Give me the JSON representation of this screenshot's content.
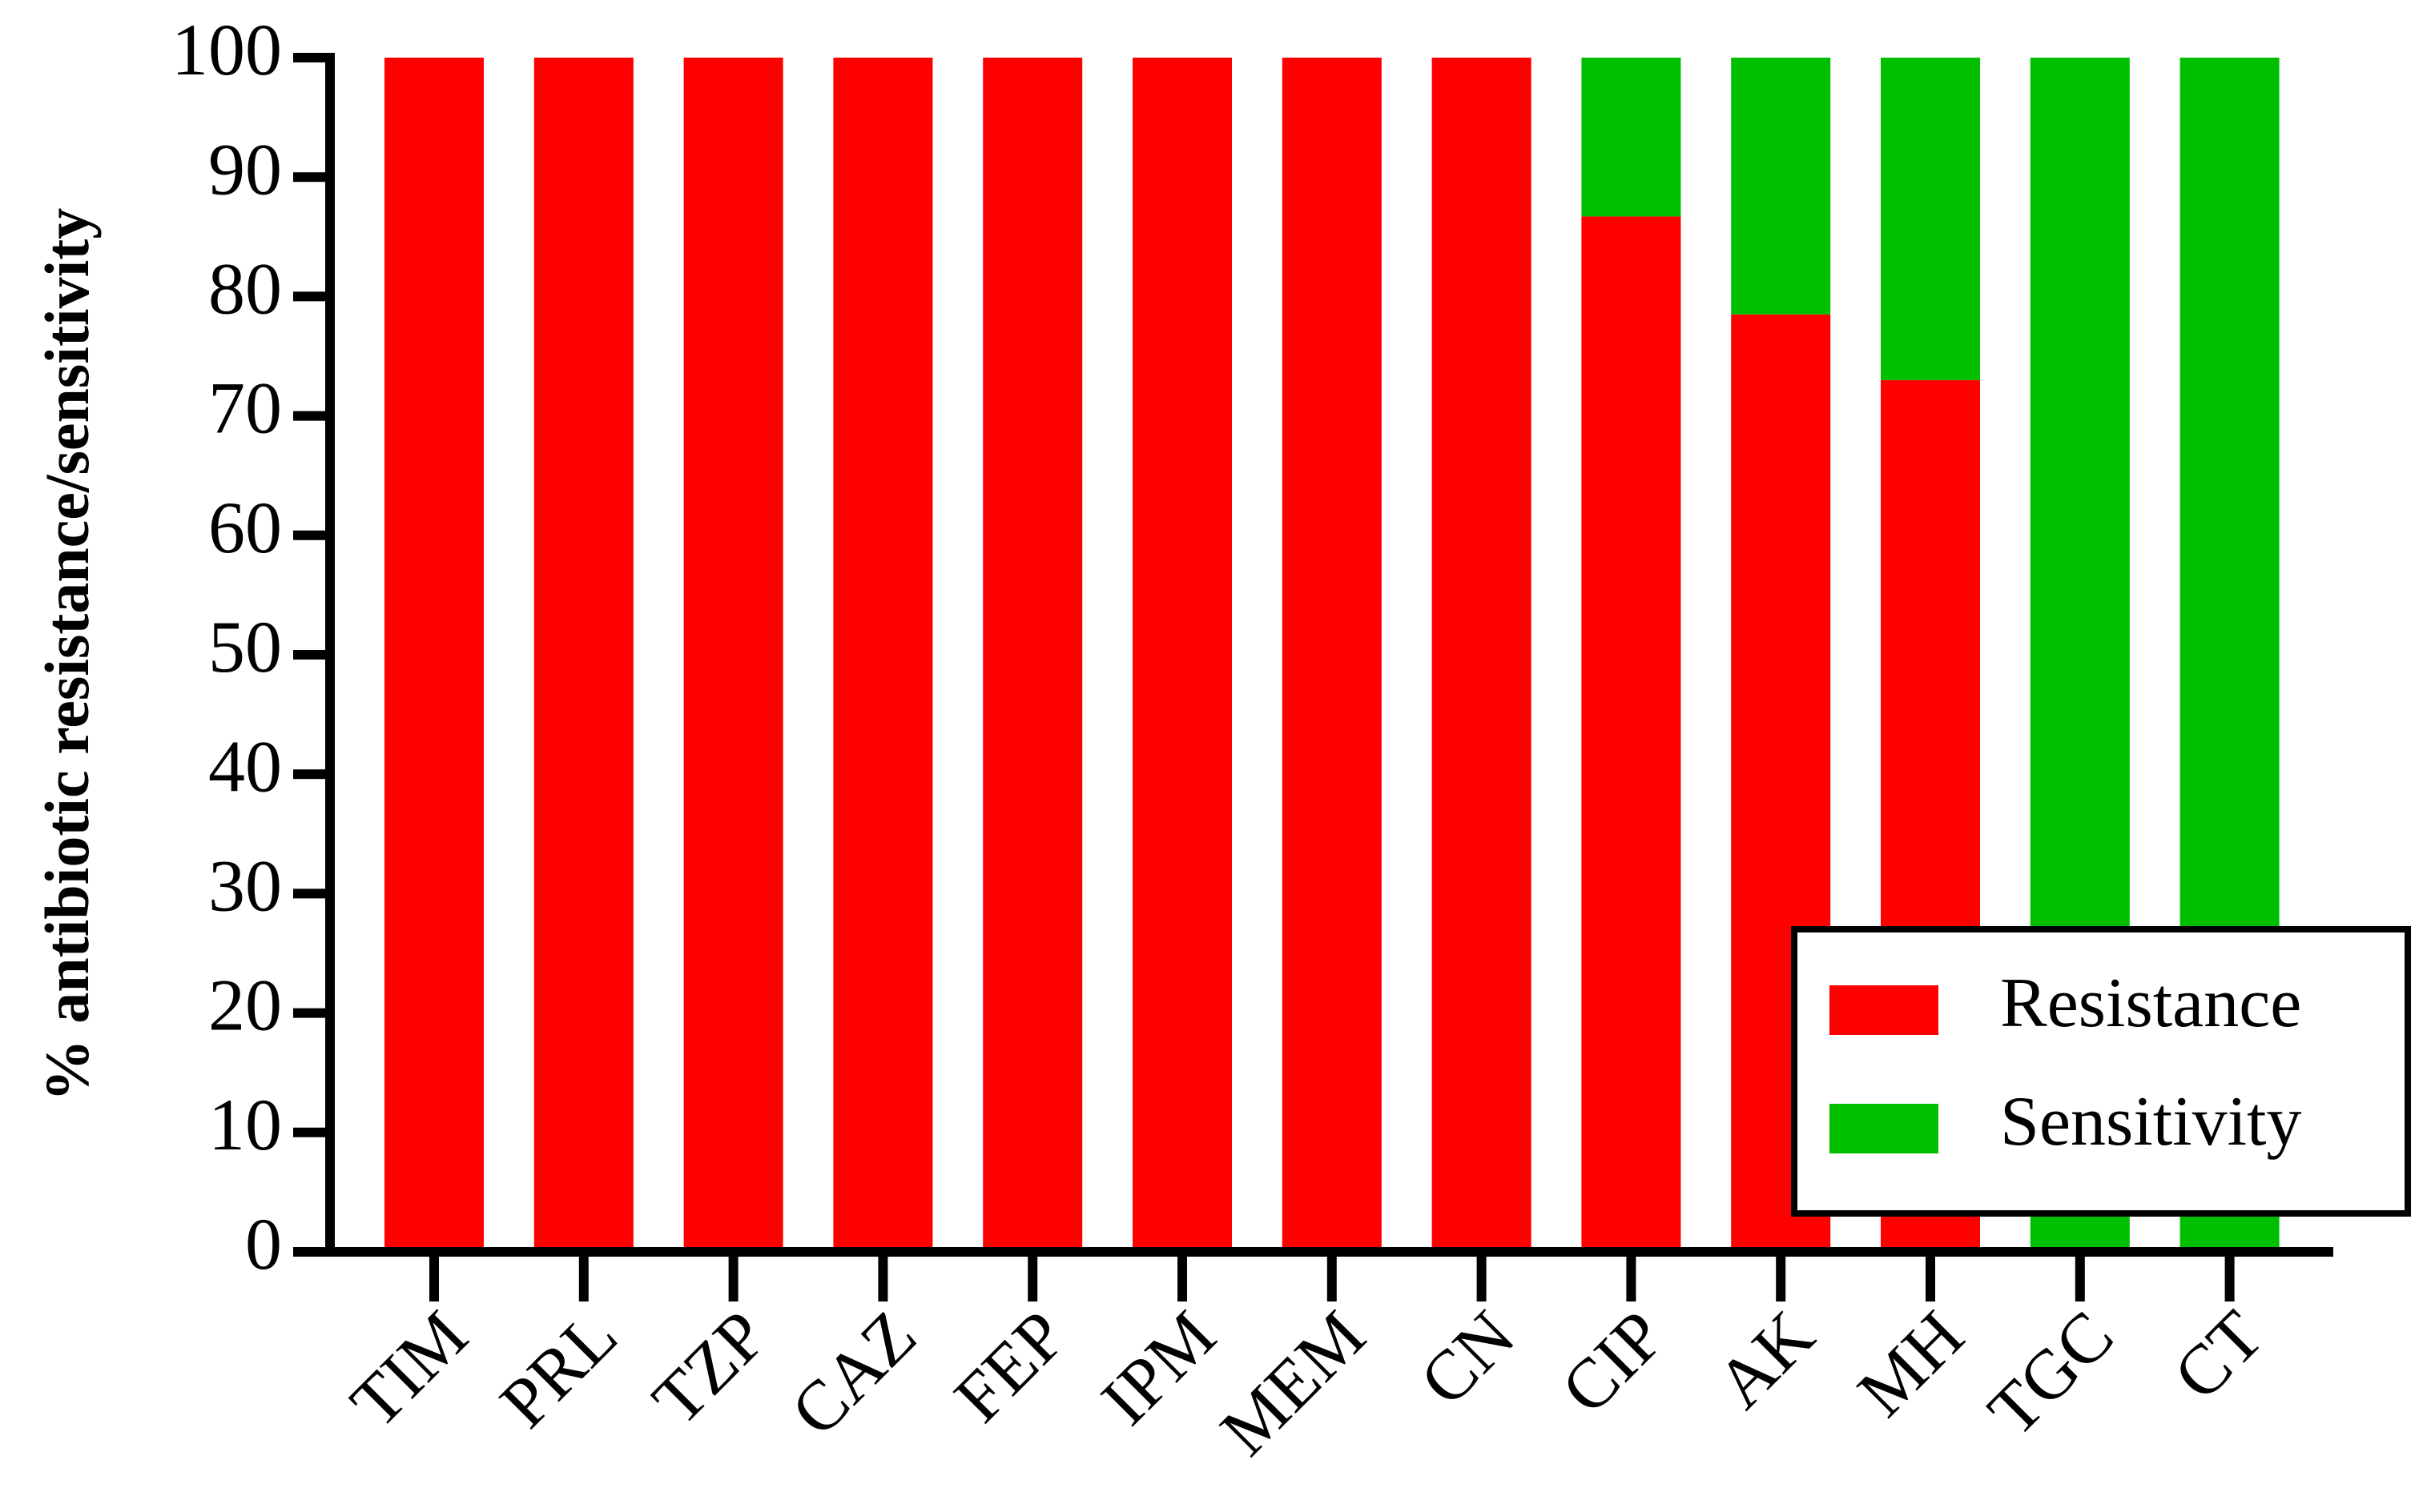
{
  "chart_data": {
    "type": "stacked_bar",
    "y_label": "% antibiotic resistance/sensitivity",
    "categories": [
      "TIM",
      "PRL",
      "TZP",
      "CAZ",
      "FEP",
      "IPM",
      "MEM",
      "CN",
      "CIP",
      "AK",
      "MH",
      "TGC",
      "CT"
    ],
    "series": [
      {
        "name": "Resistance",
        "color": "#ff0000",
        "values": [
          100,
          100,
          100,
          100,
          100,
          100,
          100,
          100,
          86.7,
          78.5,
          73,
          0,
          0
        ]
      },
      {
        "name": "Sensitivity",
        "color": "#00bf00",
        "values": [
          0,
          0,
          0,
          0,
          0,
          0,
          0,
          0,
          13.3,
          21.5,
          27,
          100,
          100
        ]
      }
    ],
    "ylim": [
      0,
      100
    ],
    "yticks": [
      0,
      10,
      20,
      30,
      40,
      50,
      60,
      70,
      80,
      90,
      100
    ],
    "legend": "lower right"
  }
}
